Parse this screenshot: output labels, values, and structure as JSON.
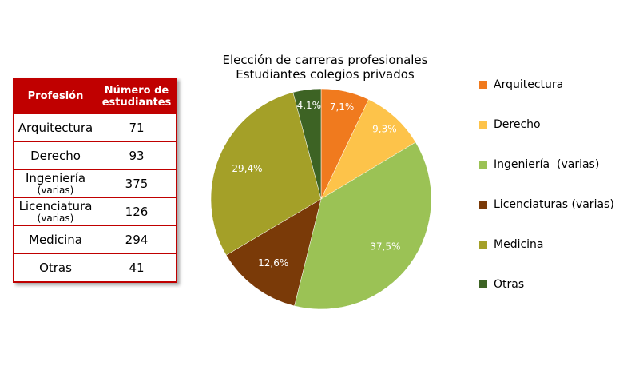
{
  "table": {
    "headers": [
      "Profesión",
      "Número de estudiantes"
    ],
    "rows": [
      {
        "name": "Arquitectura",
        "sub": "",
        "value": "71"
      },
      {
        "name": "Derecho",
        "sub": "",
        "value": "93"
      },
      {
        "name": "Ingeniería",
        "sub": "(varias)",
        "value": "375"
      },
      {
        "name": "Licenciatura",
        "sub": "(varias)",
        "value": "126"
      },
      {
        "name": "Medicina",
        "sub": "",
        "value": "294"
      },
      {
        "name": "Otras",
        "sub": "",
        "value": "41"
      }
    ]
  },
  "chart_data": {
    "type": "pie",
    "title": "Elección de carreras profesionales",
    "subtitle": "Estudiantes colegios privados",
    "categories": [
      "Arquitectura",
      "Derecho",
      "Ingeniería  (varias)",
      "Licenciaturas (varias)",
      "Medicina",
      "Otras"
    ],
    "values": [
      7.1,
      9.3,
      37.5,
      12.6,
      29.4,
      4.1
    ],
    "labels": [
      "7,1%",
      "9,3%",
      "37,5%",
      "12,6%",
      "29,4%",
      "4,1%"
    ],
    "colors": [
      "#f07a1e",
      "#fdc34a",
      "#9bc255",
      "#7a3a08",
      "#a4a028",
      "#3d6324"
    ],
    "legend_position": "right"
  }
}
